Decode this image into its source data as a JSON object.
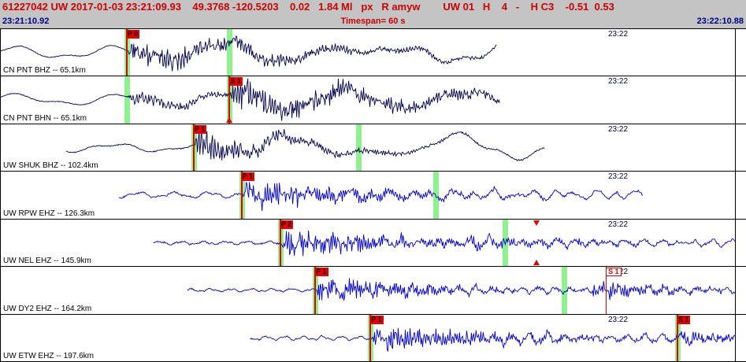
{
  "header": {
    "line1": "61227042 UW 2017-01-03 23:21:09.93    49.3768 -120.5203    0.02   1.84 Ml   px   R amyw        UW 01   H    4   -    H C3    -0.51  0.53",
    "start_time": "23:21:10.92",
    "timespan": "Timespan=  60 s",
    "end_time": "23:22:10.88"
  },
  "minute_label": "23:22",
  "colors": {
    "dark": "#000048",
    "blue": "#0000c8",
    "flag_bg": "#e00000",
    "band": "#8ef08e",
    "header_text": "#cc0000",
    "time_text": "#000080"
  },
  "traces": [
    {
      "id": "cn-pnt-bhz",
      "label": "CN PNT BHZ -- 65.1km",
      "color": "dark",
      "picks": [
        {
          "label": "P 0",
          "x": 0.169,
          "style": "flag"
        }
      ],
      "bands": [
        0.169,
        0.307
      ],
      "markers": [],
      "wave": {
        "seed": 101,
        "start": 0.0,
        "end": 0.665,
        "preAmp": 9,
        "prePeriod": 130,
        "jitter": 0.5,
        "bursts": [
          {
            "x": 0.169,
            "amp": 16,
            "period": 3.8,
            "decay": 200
          }
        ],
        "codaAmp": 12,
        "codaPeriod": 180
      }
    },
    {
      "id": "cn-pnt-bhn",
      "label": "CN PNT BHN -- 65.1km",
      "color": "dark",
      "picks": [
        {
          "label": "S 1",
          "x": 0.307,
          "style": "flag"
        }
      ],
      "bands": [
        0.169,
        0.307
      ],
      "markers": [
        {
          "x": 0.307,
          "dir": "up"
        }
      ],
      "wave": {
        "seed": 202,
        "start": 0.0,
        "end": 0.67,
        "preAmp": 8,
        "prePeriod": 140,
        "jitter": 0.5,
        "bursts": [
          {
            "x": 0.169,
            "amp": 7,
            "period": 4.0,
            "decay": 150
          },
          {
            "x": 0.307,
            "amp": 16,
            "period": 3.2,
            "decay": 260
          }
        ],
        "codaAmp": 8,
        "codaPeriod": 160
      }
    },
    {
      "id": "uw-shuk-bhz",
      "label": "UW SHUK BHZ -- 102.4km",
      "color": "dark",
      "picks": [
        {
          "label": "P 1",
          "x": 0.259,
          "style": "flag"
        }
      ],
      "bands": [
        0.259,
        0.48
      ],
      "markers": [],
      "wave": {
        "seed": 303,
        "start": 0.088,
        "end": 0.73,
        "preAmp": 6,
        "prePeriod": 110,
        "jitter": 0.6,
        "bursts": [
          {
            "x": 0.259,
            "amp": 15,
            "period": 3.5,
            "decay": 130
          }
        ],
        "codaAmp": 15,
        "codaPeriod": 210
      }
    },
    {
      "id": "uw-rpw-ehz",
      "label": "UW RPW EHZ -- 126.3km",
      "color": "blue",
      "picks": [
        {
          "label": "P 1",
          "x": 0.323,
          "style": "flag"
        }
      ],
      "bands": [
        0.323,
        0.584
      ],
      "markers": [],
      "wave": {
        "seed": 404,
        "start": 0.158,
        "end": 0.862,
        "preAmp": 4,
        "prePeriod": 45,
        "jitter": 1.0,
        "bursts": [
          {
            "x": 0.323,
            "amp": 15,
            "period": 3.0,
            "decay": 150
          }
        ],
        "codaAmp": 5,
        "codaPeriod": 26
      }
    },
    {
      "id": "uw-nel-ehz",
      "label": "UW NEL EHZ -- 145.9km",
      "color": "blue",
      "picks": [
        {
          "label": "P 2",
          "x": 0.375,
          "style": "flag"
        }
      ],
      "bands": [
        0.375,
        0.677
      ],
      "markers": [
        {
          "x": 0.719,
          "dir": "down"
        },
        {
          "x": 0.719,
          "dir": "up"
        }
      ],
      "wave": {
        "seed": 505,
        "start": 0.205,
        "end": 0.985,
        "preAmp": 2.5,
        "prePeriod": 28,
        "jitter": 0.9,
        "bursts": [
          {
            "x": 0.375,
            "amp": 15,
            "period": 2.8,
            "decay": 160
          },
          {
            "x": 0.62,
            "amp": 5,
            "period": 3.2,
            "decay": 180
          }
        ],
        "codaAmp": 4,
        "codaPeriod": 22
      }
    },
    {
      "id": "uw-dy2-ehz",
      "label": "UW DY2 EHZ -- 164.2km",
      "color": "blue",
      "picks": [
        {
          "label": "P 1",
          "x": 0.422,
          "style": "flag"
        },
        {
          "label": "S 1",
          "x": 0.813,
          "style": "ghost"
        }
      ],
      "bands": [
        0.422,
        0.756
      ],
      "markers": [],
      "wave": {
        "seed": 606,
        "start": 0.25,
        "end": 0.985,
        "preAmp": 2,
        "prePeriod": 26,
        "jitter": 0.8,
        "bursts": [
          {
            "x": 0.422,
            "amp": 13,
            "period": 2.6,
            "decay": 150
          },
          {
            "x": 0.79,
            "amp": 9,
            "period": 3.0,
            "decay": 110
          }
        ],
        "codaAmp": 4,
        "codaPeriod": 20
      }
    },
    {
      "id": "uw-etw-ehz",
      "label": "UW ETW EHZ -- 197.6km",
      "color": "blue",
      "picks": [
        {
          "label": "P 1",
          "x": 0.496,
          "style": "flag"
        },
        {
          "label": "S 1",
          "x": 0.908,
          "style": "flag"
        }
      ],
      "bands": [
        0.496,
        0.908
      ],
      "markers": [],
      "wave": {
        "seed": 707,
        "start": 0.335,
        "end": 0.985,
        "preAmp": 3,
        "prePeriod": 24,
        "jitter": 0.8,
        "bursts": [
          {
            "x": 0.496,
            "amp": 14,
            "period": 3.0,
            "decay": 170
          },
          {
            "x": 0.908,
            "amp": 7,
            "period": 3.5,
            "decay": 90
          }
        ],
        "codaAmp": 4,
        "codaPeriod": 21
      }
    }
  ]
}
